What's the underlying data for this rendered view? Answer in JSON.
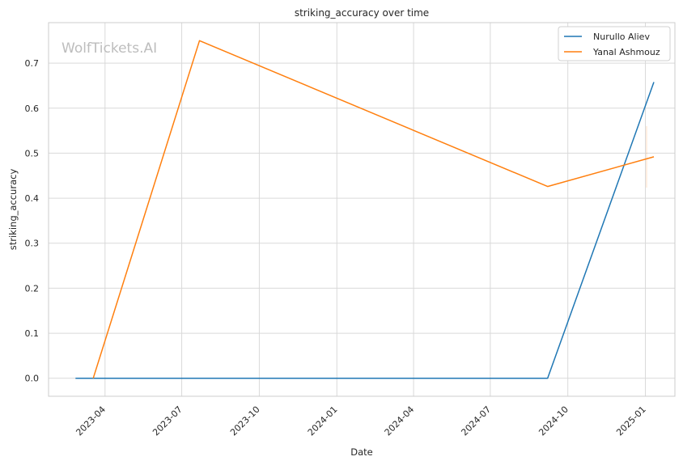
{
  "chart_data": {
    "type": "line",
    "title": "striking_accuracy over time",
    "xlabel": "Date",
    "ylabel": "striking_accuracy",
    "watermark": "WolfTickets.AI",
    "xlim": [
      "2023-01-24",
      "2025-02-05"
    ],
    "ylim": [
      -0.04,
      0.79
    ],
    "x_ticks": [
      "2023-04",
      "2023-07",
      "2023-10",
      "2024-01",
      "2024-04",
      "2024-07",
      "2024-10",
      "2025-01"
    ],
    "y_ticks": [
      0.0,
      0.1,
      0.2,
      0.3,
      0.4,
      0.5,
      0.6,
      0.7
    ],
    "y_tick_labels": [
      "0.0",
      "0.1",
      "0.2",
      "0.3",
      "0.4",
      "0.5",
      "0.6",
      "0.7"
    ],
    "grid": true,
    "legend_position": "top-right",
    "series": [
      {
        "name": "Nurullo Aliev",
        "color": "#1f77b4",
        "points": [
          {
            "x": "2023-02-25",
            "y": 0.0
          },
          {
            "x": "2024-09-07",
            "y": 0.0
          },
          {
            "x": "2025-01-11",
            "y": 0.658
          }
        ]
      },
      {
        "name": "Yanal Ashmouz",
        "color": "#ff7f0e",
        "points": [
          {
            "x": "2023-03-18",
            "y": 0.0
          },
          {
            "x": "2023-07-22",
            "y": 0.75
          },
          {
            "x": "2024-09-07",
            "y": 0.426
          },
          {
            "x": "2025-01-11",
            "y": 0.492
          }
        ]
      }
    ]
  }
}
